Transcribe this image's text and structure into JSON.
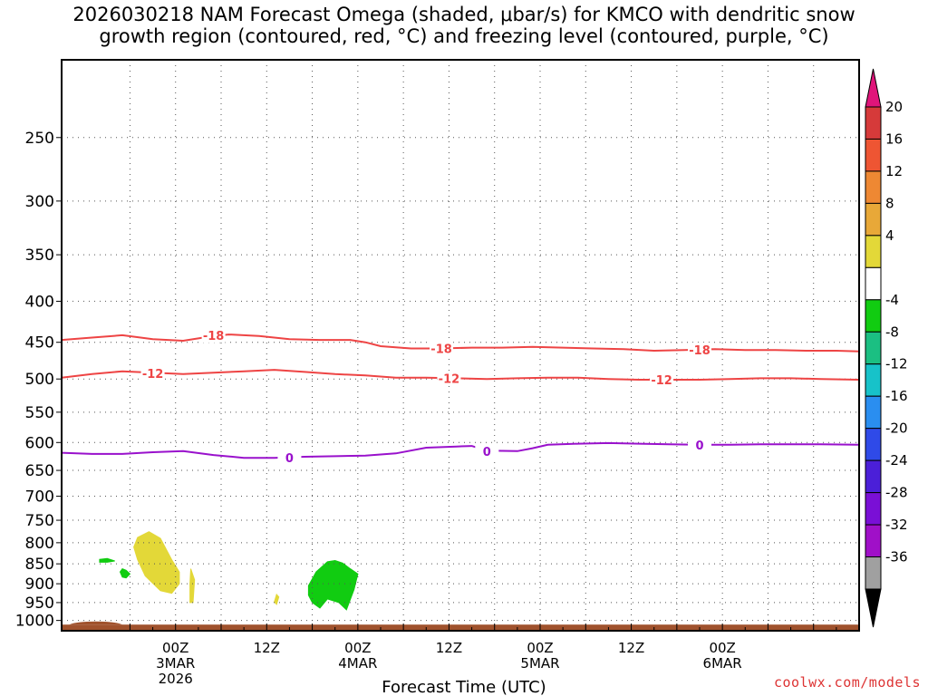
{
  "chart_data": {
    "type": "time-height cross section",
    "title_line1": "2026030218 NAM Forecast Omega (shaded, μbar/s) for KMCO with dendritic snow",
    "title_line2": "growth region (contoured, red, °C) and freezing level (contoured, purple, °C)",
    "xlabel": "Forecast Time (UTC)",
    "ylabel": "",
    "credit": "coolwx.com/models",
    "x_range_hours": [
      -9,
      96
    ],
    "y_range_hPa": [
      1030,
      200
    ],
    "y_ticks": [
      {
        "p": 250,
        "label": "250"
      },
      {
        "p": 300,
        "label": "300"
      },
      {
        "p": 350,
        "label": "350"
      },
      {
        "p": 400,
        "label": "400"
      },
      {
        "p": 450,
        "label": "450"
      },
      {
        "p": 500,
        "label": "500"
      },
      {
        "p": 550,
        "label": "550"
      },
      {
        "p": 600,
        "label": "600"
      },
      {
        "p": 650,
        "label": "650"
      },
      {
        "p": 700,
        "label": "700"
      },
      {
        "p": 750,
        "label": "750"
      },
      {
        "p": 800,
        "label": "800"
      },
      {
        "p": 850,
        "label": "850"
      },
      {
        "p": 900,
        "label": "900"
      },
      {
        "p": 950,
        "label": "950"
      },
      {
        "p": 1000,
        "label": "1000"
      }
    ],
    "x_ticks": [
      {
        "h": 6,
        "lines": [
          "00Z",
          "3MAR",
          "2026"
        ]
      },
      {
        "h": 18,
        "lines": [
          "12Z"
        ]
      },
      {
        "h": 30,
        "lines": [
          "00Z",
          "4MAR"
        ]
      },
      {
        "h": 42,
        "lines": [
          "12Z"
        ]
      },
      {
        "h": 54,
        "lines": [
          "00Z",
          "5MAR"
        ]
      },
      {
        "h": 66,
        "lines": [
          "12Z"
        ]
      },
      {
        "h": 78,
        "lines": [
          "00Z",
          "6MAR"
        ]
      }
    ],
    "contours": [
      {
        "name": "-18C isotherm",
        "label": "-18",
        "color": "#ee4444",
        "points": [
          [
            -9,
            447
          ],
          [
            -5,
            444
          ],
          [
            -1,
            441
          ],
          [
            3,
            446
          ],
          [
            7,
            448
          ],
          [
            11,
            442
          ],
          [
            13,
            440
          ],
          [
            17,
            442
          ],
          [
            21,
            446
          ],
          [
            25,
            447
          ],
          [
            29,
            447
          ],
          [
            31,
            450
          ],
          [
            33,
            455
          ],
          [
            37,
            458
          ],
          [
            41,
            458
          ],
          [
            45,
            457
          ],
          [
            49,
            457
          ],
          [
            53,
            456
          ],
          [
            57,
            457
          ],
          [
            61,
            458
          ],
          [
            65,
            459
          ],
          [
            69,
            461
          ],
          [
            73,
            460
          ],
          [
            77,
            459
          ],
          [
            81,
            460
          ],
          [
            85,
            460
          ],
          [
            89,
            461
          ],
          [
            93,
            461
          ],
          [
            96,
            462
          ]
        ],
        "label_at": [
          [
            11,
            441
          ],
          [
            41,
            458
          ],
          [
            75,
            460
          ]
        ]
      },
      {
        "name": "-12C isotherm",
        "label": "-12",
        "color": "#ee4444",
        "points": [
          [
            -9,
            498
          ],
          [
            -5,
            493
          ],
          [
            -1,
            489
          ],
          [
            3,
            491
          ],
          [
            7,
            493
          ],
          [
            11,
            491
          ],
          [
            15,
            489
          ],
          [
            19,
            487
          ],
          [
            23,
            490
          ],
          [
            27,
            493
          ],
          [
            31,
            495
          ],
          [
            35,
            498
          ],
          [
            39,
            498
          ],
          [
            43,
            499
          ],
          [
            47,
            500
          ],
          [
            51,
            499
          ],
          [
            55,
            498
          ],
          [
            59,
            498
          ],
          [
            63,
            500
          ],
          [
            67,
            501
          ],
          [
            71,
            501
          ],
          [
            75,
            501
          ],
          [
            79,
            500
          ],
          [
            83,
            499
          ],
          [
            87,
            499
          ],
          [
            91,
            500
          ],
          [
            96,
            501
          ]
        ],
        "label_at": [
          [
            3,
            492
          ],
          [
            42,
            499
          ],
          [
            70,
            501
          ]
        ]
      },
      {
        "name": "0C freezing level",
        "label": "0",
        "color": "#9911cc",
        "points": [
          [
            -9,
            618
          ],
          [
            -5,
            620
          ],
          [
            -1,
            620
          ],
          [
            3,
            617
          ],
          [
            7,
            615
          ],
          [
            11,
            622
          ],
          [
            15,
            627
          ],
          [
            19,
            627
          ],
          [
            23,
            625
          ],
          [
            27,
            624
          ],
          [
            31,
            623
          ],
          [
            35,
            619
          ],
          [
            39,
            609
          ],
          [
            43,
            607
          ],
          [
            45,
            606
          ],
          [
            47,
            614
          ],
          [
            51,
            615
          ],
          [
            53,
            610
          ],
          [
            55,
            604
          ],
          [
            59,
            602
          ],
          [
            63,
            601
          ],
          [
            67,
            602
          ],
          [
            71,
            603
          ],
          [
            75,
            604
          ],
          [
            79,
            604
          ],
          [
            83,
            603
          ],
          [
            87,
            603
          ],
          [
            91,
            603
          ],
          [
            96,
            604
          ]
        ],
        "label_at": [
          [
            21,
            627
          ],
          [
            47,
            615
          ],
          [
            75,
            604
          ]
        ]
      }
    ],
    "shaded_regions": [
      {
        "name": "weak rising motion (-8 to -4 μbar/s)",
        "color": "#11cc11",
        "points": [
          [
            -4,
            839
          ],
          [
            -3,
            837
          ],
          [
            -2,
            843
          ],
          [
            -3,
            846
          ],
          [
            -4,
            846
          ]
        ]
      },
      {
        "name": "weak rising motion small",
        "color": "#11cc11",
        "points": [
          [
            -1,
            862
          ],
          [
            -0.5,
            866
          ],
          [
            0,
            875
          ],
          [
            -0.5,
            885
          ],
          [
            -1,
            883
          ],
          [
            -1.3,
            870
          ]
        ]
      },
      {
        "name": "weak sinking motion (4 to 8 μbar/s)",
        "color": "#e3d838",
        "points": [
          [
            1,
            788
          ],
          [
            2.5,
            775
          ],
          [
            4,
            790
          ],
          [
            5.5,
            840
          ],
          [
            6.5,
            870
          ],
          [
            6.5,
            900
          ],
          [
            5.5,
            925
          ],
          [
            4,
            918
          ],
          [
            2,
            880
          ],
          [
            1,
            840
          ],
          [
            0.5,
            810
          ]
        ]
      },
      {
        "name": "weak sinking small",
        "color": "#e3d838",
        "points": [
          [
            8,
            862
          ],
          [
            8.5,
            890
          ],
          [
            8.3,
            950
          ],
          [
            7.9,
            950
          ],
          [
            7.9,
            900
          ]
        ]
      },
      {
        "name": "weak sinking dot",
        "color": "#e3d838",
        "points": [
          [
            19.3,
            928
          ],
          [
            19.6,
            935
          ],
          [
            19.3,
            955
          ],
          [
            19,
            948
          ]
        ]
      },
      {
        "name": "rising motion (-8 to -4 μbar/s) 4MAR",
        "color": "#11cc11",
        "points": [
          [
            23.5,
            905
          ],
          [
            24.5,
            870
          ],
          [
            26,
            845
          ],
          [
            27,
            842
          ],
          [
            28,
            848
          ],
          [
            29,
            862
          ],
          [
            30,
            875
          ],
          [
            29.5,
            915
          ],
          [
            28.5,
            970
          ],
          [
            27.5,
            950
          ],
          [
            26,
            940
          ],
          [
            25,
            965
          ],
          [
            24,
            950
          ],
          [
            23.5,
            930
          ]
        ]
      }
    ],
    "terrain": {
      "color": "#a0522d",
      "surface_hPa": 1012,
      "bump": {
        "from_h": -8,
        "to_h": -1,
        "top_hPa": 1003
      }
    },
    "colorbar": {
      "labels": [
        "20",
        "16",
        "12",
        "8",
        "4",
        "-4",
        "-8",
        "-12",
        "-16",
        "-20",
        "-24",
        "-28",
        "-32",
        "-36"
      ],
      "colors": [
        "#d63a3a",
        "#ee5533",
        "#ee8833",
        "#e8a838",
        "#e3d838",
        "#ffffff",
        "#11cc11",
        "#1bbf82",
        "#17c2c9",
        "#2a8ef0",
        "#2f4ae8",
        "#4b1fd8",
        "#7a0fd6",
        "#a010c8",
        "#a0a0a0"
      ],
      "top_tip_color": "#e0157a",
      "bottom_tip_color": "#000000"
    }
  }
}
